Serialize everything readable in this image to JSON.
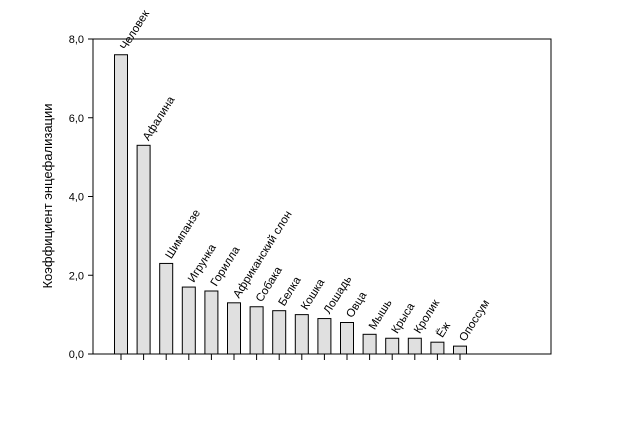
{
  "chart_data": {
    "type": "bar",
    "ylabel": "Коэффициент энцефализации",
    "categories": [
      "Человек",
      "Афалина",
      "Шимпанзе",
      "Игрунка",
      "Горилла",
      "Африканский слон",
      "Собака",
      "Белка",
      "Кошка",
      "Лошадь",
      "Овца",
      "Мышь",
      "Крыса",
      "Кролик",
      "Ёж",
      "Опоссум"
    ],
    "values": [
      7.6,
      5.3,
      2.3,
      1.7,
      1.6,
      1.3,
      1.2,
      1.1,
      1.0,
      0.9,
      0.8,
      0.5,
      0.4,
      0.4,
      0.3,
      0.2
    ],
    "color": "#e0e0e0",
    "ylim": [
      0,
      8
    ],
    "yticks": [
      {
        "value": 0,
        "label": "0,0"
      },
      {
        "value": 2,
        "label": "2,0"
      },
      {
        "value": 4,
        "label": "4,0"
      },
      {
        "value": 6,
        "label": "6,0"
      },
      {
        "value": 8,
        "label": "8,0"
      }
    ]
  }
}
